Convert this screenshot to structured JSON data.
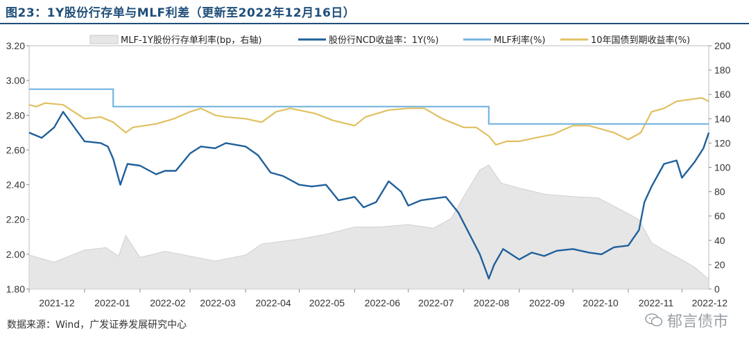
{
  "figure": {
    "title": "图23：1Y股份行存单与MLF利差（更新至2022年12月16日）",
    "source": "数据来源：Wind，广发证券发展研究中心",
    "watermark": "郁言债市",
    "watermark_icon": "wechat-icon"
  },
  "chart_data": {
    "type": "line",
    "title": "",
    "xlabel": "",
    "ylabel": "",
    "ylim": [
      1.8,
      3.2
    ],
    "y2lim": [
      0,
      200
    ],
    "yticks": [
      "3.20",
      "3.00",
      "2.80",
      "2.60",
      "2.40",
      "2.20",
      "2.00",
      "1.80"
    ],
    "y2ticks": [
      "200",
      "180",
      "160",
      "140",
      "120",
      "100",
      "80",
      "60",
      "40",
      "20",
      "0"
    ],
    "xticks": [
      "2021-12",
      "2022-01",
      "2022-02",
      "2022-03",
      "2022-04",
      "2022-05",
      "2022-06",
      "2022-07",
      "2022-08",
      "2022-09",
      "2022-10",
      "2022-11",
      "2022-12"
    ],
    "xlim": [
      "2021-12-01",
      "2022-12-16"
    ],
    "grid": false,
    "legend": "top",
    "colors": {
      "spread": "#e6e6e6",
      "spread_edge": "#c8c8c8",
      "ncd": "#1f5f9a",
      "mlf": "#74b4e0",
      "cgb": "#e0c060"
    },
    "series": [
      {
        "name": "MLF-1Y股份行存单利率(bp，右轴)",
        "axis": "right",
        "style": "area",
        "points": [
          [
            "2021-12-01",
            28
          ],
          [
            "2021-12-15",
            22
          ],
          [
            "2022-01-01",
            32
          ],
          [
            "2022-01-13",
            34
          ],
          [
            "2022-01-20",
            27
          ],
          [
            "2022-01-24",
            44
          ],
          [
            "2022-02-01",
            26
          ],
          [
            "2022-02-15",
            31
          ],
          [
            "2022-03-01",
            27
          ],
          [
            "2022-03-15",
            23
          ],
          [
            "2022-04-01",
            28
          ],
          [
            "2022-04-10",
            37
          ],
          [
            "2022-04-20",
            39
          ],
          [
            "2022-05-01",
            41
          ],
          [
            "2022-05-16",
            45
          ],
          [
            "2022-06-01",
            51
          ],
          [
            "2022-06-15",
            51
          ],
          [
            "2022-07-01",
            53
          ],
          [
            "2022-07-15",
            50
          ],
          [
            "2022-07-25",
            58
          ],
          [
            "2022-08-01",
            76
          ],
          [
            "2022-08-10",
            98
          ],
          [
            "2022-08-15",
            102
          ],
          [
            "2022-08-22",
            87
          ],
          [
            "2022-09-01",
            83
          ],
          [
            "2022-09-15",
            78
          ],
          [
            "2022-10-01",
            76
          ],
          [
            "2022-10-15",
            75
          ],
          [
            "2022-11-01",
            62
          ],
          [
            "2022-11-07",
            57
          ],
          [
            "2022-11-14",
            38
          ],
          [
            "2022-11-21",
            32
          ],
          [
            "2022-12-01",
            24
          ],
          [
            "2022-12-08",
            18
          ],
          [
            "2022-12-16",
            8
          ]
        ]
      },
      {
        "name": "股份行NCD收益率：1Y(%)",
        "axis": "left",
        "style": "line",
        "points": [
          [
            "2021-12-01",
            2.7
          ],
          [
            "2021-12-08",
            2.67
          ],
          [
            "2021-12-15",
            2.73
          ],
          [
            "2021-12-20",
            2.82
          ],
          [
            "2021-12-27",
            2.72
          ],
          [
            "2022-01-01",
            2.65
          ],
          [
            "2022-01-10",
            2.64
          ],
          [
            "2022-01-14",
            2.62
          ],
          [
            "2022-01-17",
            2.55
          ],
          [
            "2022-01-21",
            2.4
          ],
          [
            "2022-01-25",
            2.52
          ],
          [
            "2022-02-01",
            2.51
          ],
          [
            "2022-02-10",
            2.46
          ],
          [
            "2022-02-15",
            2.48
          ],
          [
            "2022-02-21",
            2.48
          ],
          [
            "2022-03-01",
            2.58
          ],
          [
            "2022-03-07",
            2.62
          ],
          [
            "2022-03-15",
            2.61
          ],
          [
            "2022-03-21",
            2.64
          ],
          [
            "2022-04-01",
            2.62
          ],
          [
            "2022-04-08",
            2.57
          ],
          [
            "2022-04-15",
            2.47
          ],
          [
            "2022-04-22",
            2.45
          ],
          [
            "2022-05-01",
            2.4
          ],
          [
            "2022-05-08",
            2.39
          ],
          [
            "2022-05-16",
            2.4
          ],
          [
            "2022-05-23",
            2.31
          ],
          [
            "2022-06-01",
            2.33
          ],
          [
            "2022-06-06",
            2.27
          ],
          [
            "2022-06-13",
            2.3
          ],
          [
            "2022-06-20",
            2.42
          ],
          [
            "2022-06-27",
            2.36
          ],
          [
            "2022-07-01",
            2.28
          ],
          [
            "2022-07-08",
            2.31
          ],
          [
            "2022-07-15",
            2.32
          ],
          [
            "2022-07-22",
            2.33
          ],
          [
            "2022-07-29",
            2.24
          ],
          [
            "2022-08-05",
            2.1
          ],
          [
            "2022-08-10",
            2.0
          ],
          [
            "2022-08-15",
            1.86
          ],
          [
            "2022-08-18",
            1.94
          ],
          [
            "2022-08-23",
            2.03
          ],
          [
            "2022-09-01",
            1.97
          ],
          [
            "2022-09-08",
            2.01
          ],
          [
            "2022-09-15",
            1.99
          ],
          [
            "2022-09-22",
            2.02
          ],
          [
            "2022-10-01",
            2.03
          ],
          [
            "2022-10-10",
            2.01
          ],
          [
            "2022-10-17",
            2.0
          ],
          [
            "2022-10-24",
            2.04
          ],
          [
            "2022-11-01",
            2.05
          ],
          [
            "2022-11-07",
            2.14
          ],
          [
            "2022-11-10",
            2.3
          ],
          [
            "2022-11-14",
            2.39
          ],
          [
            "2022-11-21",
            2.52
          ],
          [
            "2022-11-28",
            2.54
          ],
          [
            "2022-12-01",
            2.44
          ],
          [
            "2022-12-08",
            2.53
          ],
          [
            "2022-12-13",
            2.61
          ],
          [
            "2022-12-16",
            2.7
          ]
        ]
      },
      {
        "name": "MLF利率(%)",
        "axis": "left",
        "style": "step",
        "points": [
          [
            "2021-12-01",
            2.95
          ],
          [
            "2022-01-17",
            2.85
          ],
          [
            "2022-08-15",
            2.75
          ],
          [
            "2022-12-16",
            2.75
          ]
        ]
      },
      {
        "name": "10年国债到期收益率(%)",
        "axis": "left",
        "style": "line",
        "points": [
          [
            "2021-12-01",
            2.86
          ],
          [
            "2021-12-05",
            2.85
          ],
          [
            "2021-12-10",
            2.87
          ],
          [
            "2021-12-20",
            2.86
          ],
          [
            "2022-01-01",
            2.78
          ],
          [
            "2022-01-10",
            2.79
          ],
          [
            "2022-01-17",
            2.76
          ],
          [
            "2022-01-24",
            2.7
          ],
          [
            "2022-01-28",
            2.73
          ],
          [
            "2022-02-10",
            2.75
          ],
          [
            "2022-02-20",
            2.78
          ],
          [
            "2022-03-01",
            2.82
          ],
          [
            "2022-03-07",
            2.84
          ],
          [
            "2022-03-15",
            2.8
          ],
          [
            "2022-03-21",
            2.79
          ],
          [
            "2022-04-01",
            2.78
          ],
          [
            "2022-04-10",
            2.76
          ],
          [
            "2022-04-18",
            2.82
          ],
          [
            "2022-04-26",
            2.84
          ],
          [
            "2022-05-10",
            2.81
          ],
          [
            "2022-05-20",
            2.77
          ],
          [
            "2022-06-01",
            2.74
          ],
          [
            "2022-06-07",
            2.79
          ],
          [
            "2022-06-20",
            2.83
          ],
          [
            "2022-07-01",
            2.84
          ],
          [
            "2022-07-10",
            2.84
          ],
          [
            "2022-07-20",
            2.78
          ],
          [
            "2022-08-01",
            2.73
          ],
          [
            "2022-08-08",
            2.73
          ],
          [
            "2022-08-15",
            2.68
          ],
          [
            "2022-08-19",
            2.63
          ],
          [
            "2022-08-25",
            2.65
          ],
          [
            "2022-09-01",
            2.65
          ],
          [
            "2022-09-10",
            2.67
          ],
          [
            "2022-09-20",
            2.69
          ],
          [
            "2022-10-01",
            2.74
          ],
          [
            "2022-10-10",
            2.74
          ],
          [
            "2022-10-17",
            2.72
          ],
          [
            "2022-10-24",
            2.7
          ],
          [
            "2022-11-01",
            2.66
          ],
          [
            "2022-11-08",
            2.7
          ],
          [
            "2022-11-14",
            2.82
          ],
          [
            "2022-11-21",
            2.84
          ],
          [
            "2022-11-28",
            2.88
          ],
          [
            "2022-12-05",
            2.89
          ],
          [
            "2022-12-12",
            2.9
          ],
          [
            "2022-12-16",
            2.88
          ]
        ]
      }
    ]
  }
}
